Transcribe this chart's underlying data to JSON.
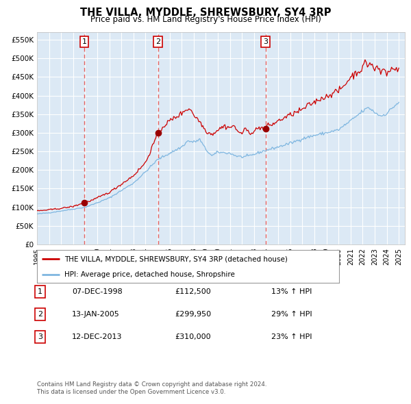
{
  "title": "THE VILLA, MYDDLE, SHREWSBURY, SY4 3RP",
  "subtitle": "Price paid vs. HM Land Registry's House Price Index (HPI)",
  "background_color": "#dce9f5",
  "plot_bg_color": "#dce9f5",
  "grid_color": "#ffffff",
  "hpi_line_color": "#7eb6e0",
  "price_line_color": "#cc0000",
  "marker_color": "#990000",
  "dashed_line_color": "#e06060",
  "ylim": [
    0,
    570000
  ],
  "yticks": [
    0,
    50000,
    100000,
    150000,
    200000,
    250000,
    300000,
    350000,
    400000,
    450000,
    500000,
    550000
  ],
  "ytick_labels": [
    "£0",
    "£50K",
    "£100K",
    "£150K",
    "£200K",
    "£250K",
    "£300K",
    "£350K",
    "£400K",
    "£450K",
    "£500K",
    "£550K"
  ],
  "xlim_start": 1995.3,
  "xlim_end": 2025.5,
  "xticks": [
    1995,
    1996,
    1997,
    1998,
    1999,
    2000,
    2001,
    2002,
    2003,
    2004,
    2005,
    2006,
    2007,
    2008,
    2009,
    2010,
    2011,
    2012,
    2013,
    2014,
    2015,
    2016,
    2017,
    2018,
    2019,
    2020,
    2021,
    2022,
    2023,
    2024,
    2025
  ],
  "sale_dates": [
    1998.93,
    2005.04,
    2013.95
  ],
  "sale_prices": [
    112500,
    299950,
    310000
  ],
  "sale_labels": [
    "1",
    "2",
    "3"
  ],
  "sale_label_dates": [
    "07-DEC-1998",
    "13-JAN-2005",
    "12-DEC-2013"
  ],
  "sale_label_prices": [
    "£112,500",
    "£299,950",
    "£310,000"
  ],
  "sale_label_hpi": [
    "13% ↑ HPI",
    "29% ↑ HPI",
    "23% ↑ HPI"
  ],
  "legend_line1": "THE VILLA, MYDDLE, SHREWSBURY, SY4 3RP (detached house)",
  "legend_line2": "HPI: Average price, detached house, Shropshire",
  "footer_line1": "Contains HM Land Registry data © Crown copyright and database right 2024.",
  "footer_line2": "This data is licensed under the Open Government Licence v3.0."
}
